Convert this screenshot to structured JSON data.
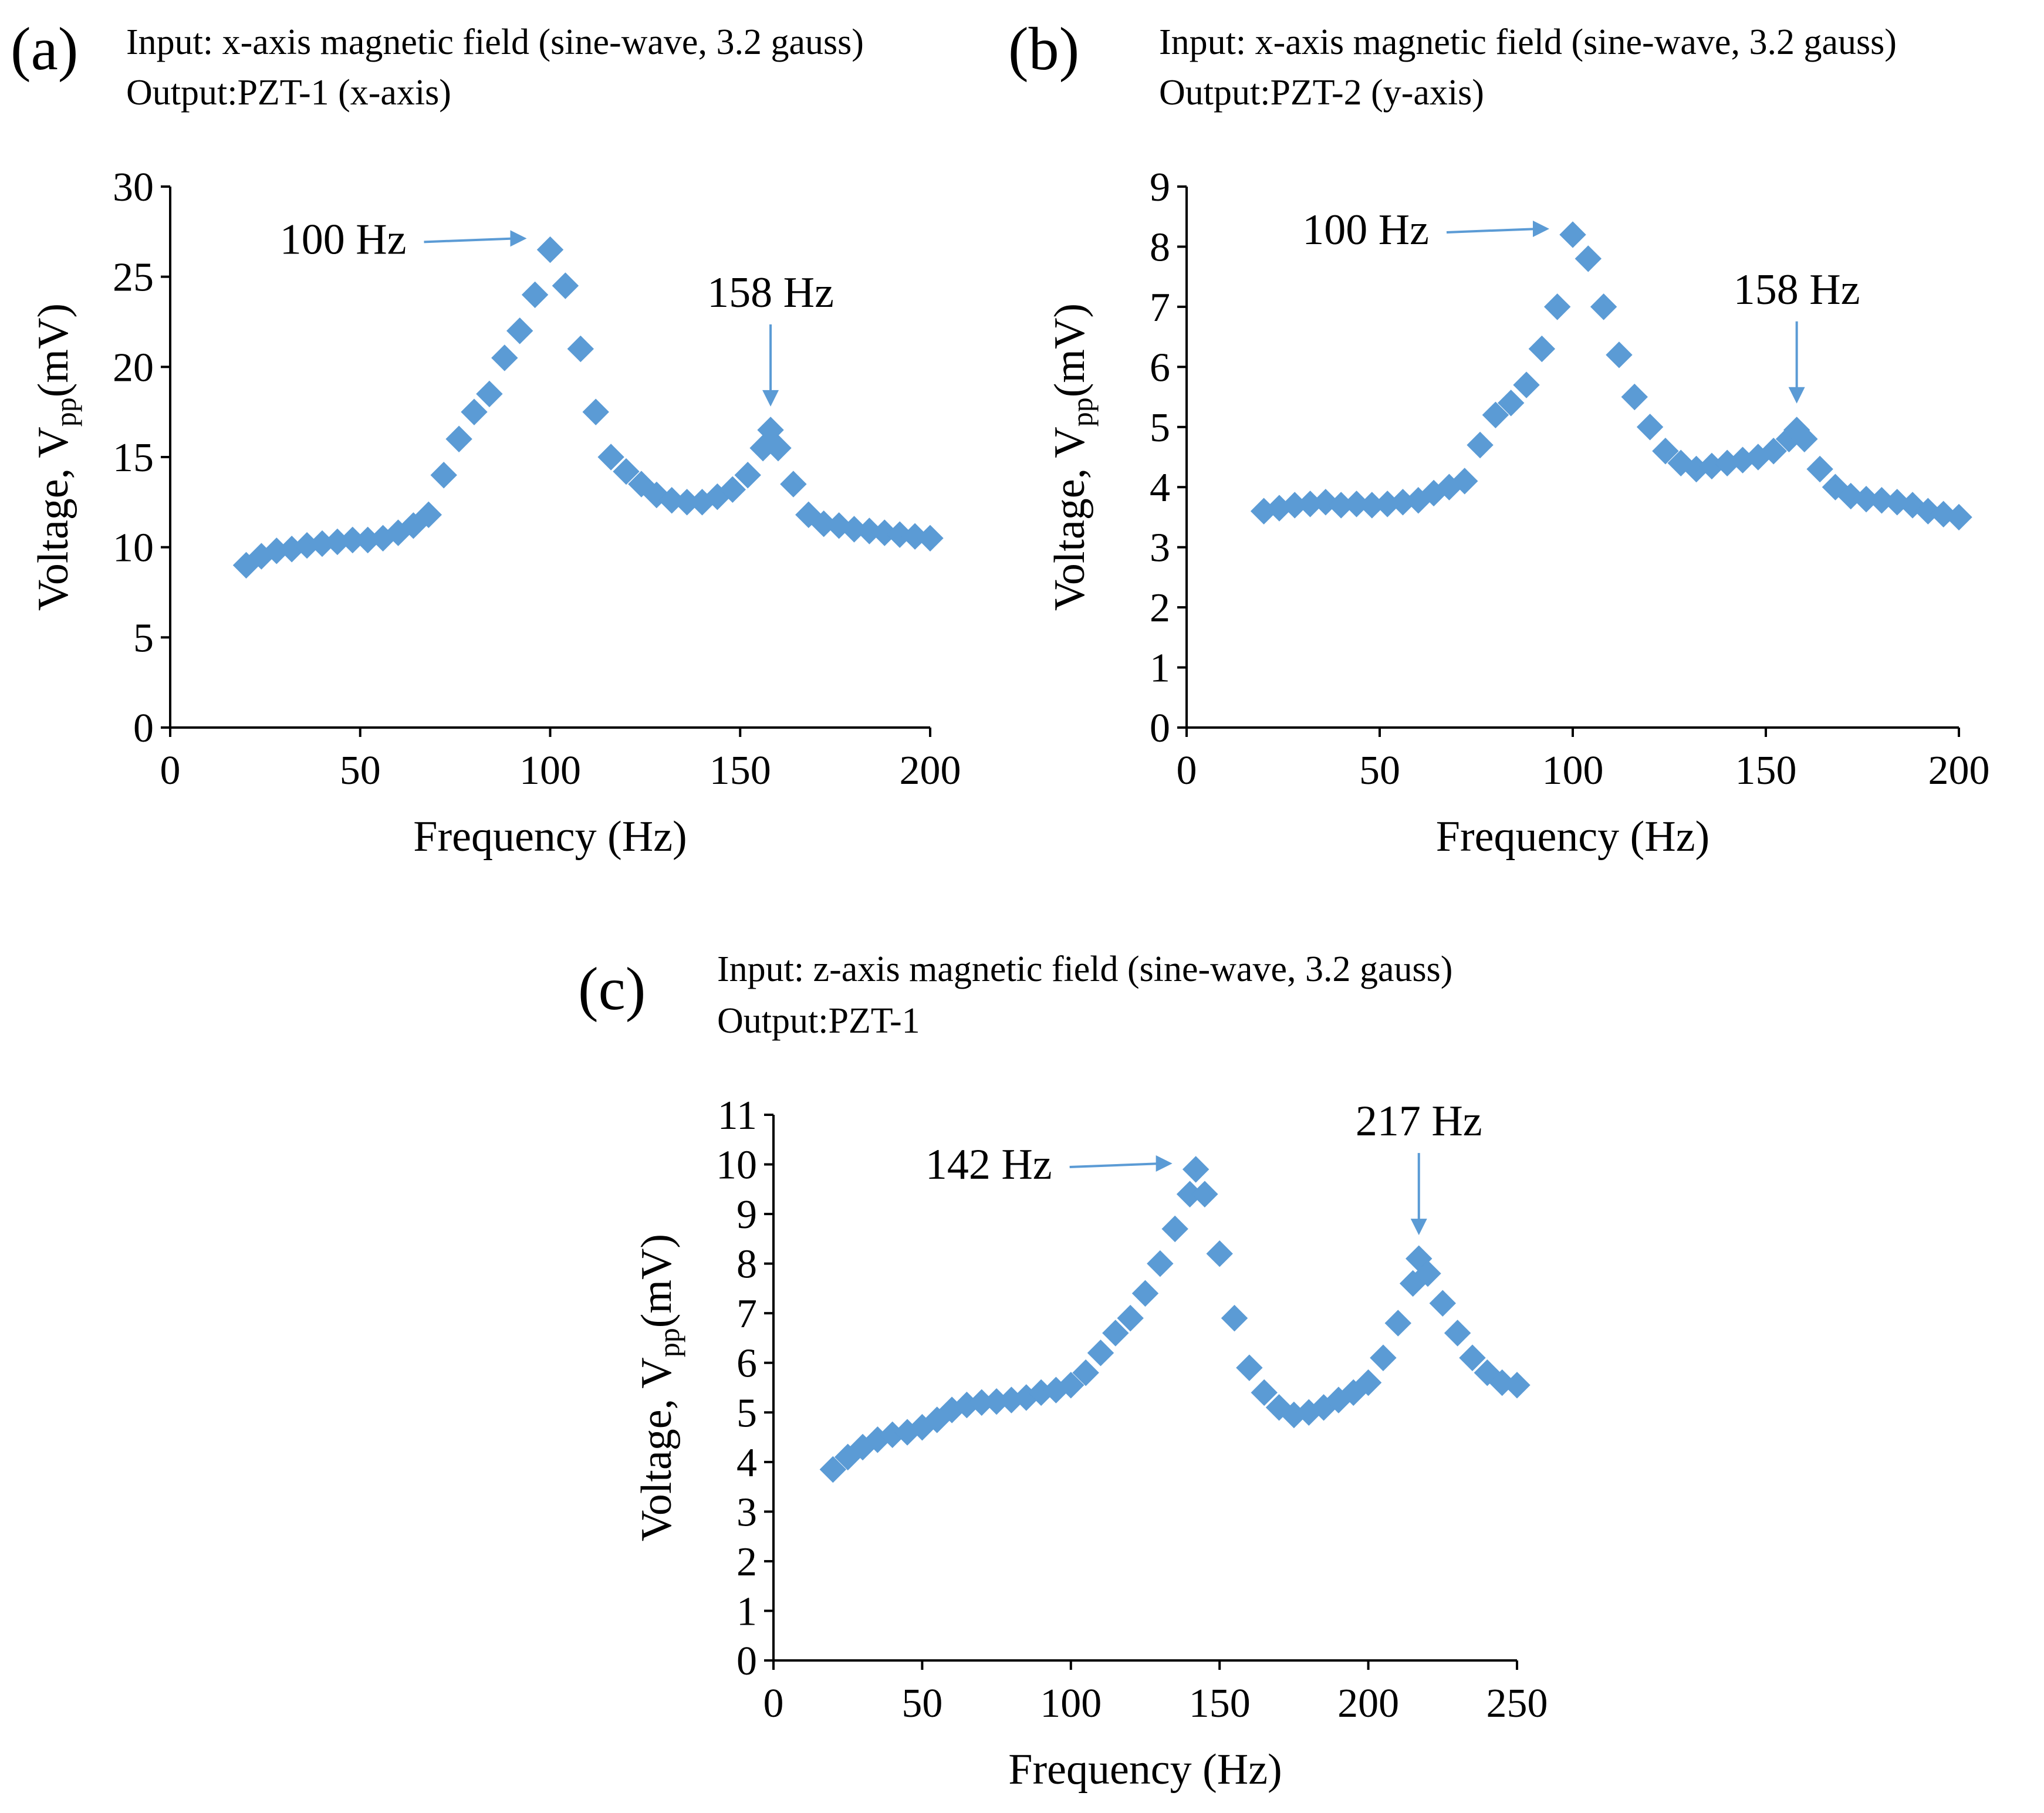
{
  "colors": {
    "marker": "#5b9bd5",
    "arrow": "#5b9bd5",
    "axis": "#000000"
  },
  "chart_data": [
    {
      "panel": "(a)",
      "caption_line1": "Input: x-axis magnetic field (sine-wave, 3.2 gauss)",
      "caption_line2": "Output:PZT-1 (x-axis)",
      "type": "scatter",
      "xlabel": "Frequency (Hz)",
      "ylabel_main": "Voltage, V",
      "ylabel_sub": "pp",
      "ylabel_unit": "(mV)",
      "xlim": [
        0,
        200
      ],
      "ylim": [
        0,
        30
      ],
      "xticks": [
        0,
        50,
        100,
        150,
        200
      ],
      "yticks": [
        0,
        5,
        10,
        15,
        20,
        25,
        30
      ],
      "marker": "diamond",
      "annotations": [
        {
          "text": "100 Hz",
          "x": 100,
          "y": 26.8,
          "arrow": "right"
        },
        {
          "text": "158 Hz",
          "x": 158,
          "y": 16.5,
          "arrow": "down"
        }
      ],
      "series": [
        {
          "x": [
            20,
            24,
            28,
            32,
            36,
            40,
            44,
            48,
            52,
            56,
            60,
            64,
            68,
            72,
            76,
            80,
            84,
            88,
            92,
            96,
            100,
            104,
            108,
            112,
            116,
            120,
            124,
            128,
            132,
            136,
            140,
            144,
            148,
            152,
            156,
            158,
            160,
            164,
            168,
            172,
            176,
            180,
            184,
            188,
            192,
            196,
            200
          ],
          "y": [
            9.0,
            9.5,
            9.8,
            9.9,
            10.1,
            10.2,
            10.3,
            10.4,
            10.4,
            10.5,
            10.8,
            11.2,
            11.8,
            14.0,
            16.0,
            17.5,
            18.5,
            20.5,
            22.0,
            24.0,
            26.5,
            24.5,
            21.0,
            17.5,
            15.0,
            14.2,
            13.5,
            12.9,
            12.6,
            12.5,
            12.5,
            12.8,
            13.2,
            14.0,
            15.5,
            16.5,
            15.5,
            13.5,
            11.8,
            11.3,
            11.2,
            11.0,
            10.9,
            10.8,
            10.7,
            10.6,
            10.5
          ]
        }
      ]
    },
    {
      "panel": "(b)",
      "caption_line1": "Input: x-axis magnetic field (sine-wave, 3.2 gauss)",
      "caption_line2": "Output:PZT-2 (y-axis)",
      "type": "scatter",
      "xlabel": "Frequency (Hz)",
      "ylabel_main": "Voltage, V",
      "ylabel_sub": "pp",
      "ylabel_unit": "(mV)",
      "xlim": [
        0,
        200
      ],
      "ylim": [
        0,
        9
      ],
      "xticks": [
        0,
        50,
        100,
        150,
        200
      ],
      "yticks": [
        0,
        1,
        2,
        3,
        4,
        5,
        6,
        7,
        8,
        9
      ],
      "marker": "diamond",
      "annotations": [
        {
          "text": "100 Hz",
          "x": 100,
          "y": 8.2,
          "arrow": "right"
        },
        {
          "text": "158 Hz",
          "x": 158,
          "y": 5.0,
          "arrow": "down"
        }
      ],
      "series": [
        {
          "x": [
            20,
            24,
            28,
            32,
            36,
            40,
            44,
            48,
            52,
            56,
            60,
            64,
            68,
            72,
            76,
            80,
            84,
            88,
            92,
            96,
            100,
            104,
            108,
            112,
            116,
            120,
            124,
            128,
            132,
            136,
            140,
            144,
            148,
            152,
            156,
            158,
            160,
            164,
            168,
            172,
            176,
            180,
            184,
            188,
            192,
            196,
            200
          ],
          "y": [
            3.6,
            3.65,
            3.7,
            3.72,
            3.75,
            3.7,
            3.72,
            3.7,
            3.72,
            3.75,
            3.78,
            3.9,
            4.0,
            4.1,
            4.7,
            5.2,
            5.4,
            5.7,
            6.3,
            7.0,
            8.2,
            7.8,
            7.0,
            6.2,
            5.5,
            5.0,
            4.6,
            4.4,
            4.3,
            4.35,
            4.4,
            4.45,
            4.5,
            4.6,
            4.8,
            4.95,
            4.8,
            4.3,
            4.0,
            3.85,
            3.8,
            3.78,
            3.75,
            3.7,
            3.6,
            3.55,
            3.5
          ]
        }
      ]
    },
    {
      "panel": "(c)",
      "caption_line1": "Input: z-axis magnetic field (sine-wave, 3.2 gauss)",
      "caption_line2": "Output:PZT-1",
      "type": "scatter",
      "xlabel": "Frequency (Hz)",
      "ylabel_main": "Voltage, V",
      "ylabel_sub": "pp",
      "ylabel_unit": "(mV)",
      "xlim": [
        0,
        250
      ],
      "ylim": [
        0,
        11
      ],
      "xticks": [
        0,
        50,
        100,
        150,
        200,
        250
      ],
      "yticks": [
        0,
        1,
        2,
        3,
        4,
        5,
        6,
        7,
        8,
        9,
        10,
        11
      ],
      "marker": "diamond",
      "annotations": [
        {
          "text": "142 Hz",
          "x": 142,
          "y": 9.9,
          "arrow": "right"
        },
        {
          "text": "217 Hz",
          "x": 217,
          "y": 8.1,
          "arrow": "down"
        }
      ],
      "series": [
        {
          "x": [
            20,
            25,
            30,
            35,
            40,
            45,
            50,
            55,
            60,
            65,
            70,
            75,
            80,
            85,
            90,
            95,
            100,
            105,
            110,
            115,
            120,
            125,
            130,
            135,
            140,
            142,
            145,
            150,
            155,
            160,
            165,
            170,
            175,
            180,
            185,
            190,
            195,
            200,
            205,
            210,
            215,
            217,
            220,
            225,
            230,
            235,
            240,
            245,
            250
          ],
          "y": [
            3.85,
            4.1,
            4.3,
            4.45,
            4.55,
            4.6,
            4.7,
            4.85,
            5.05,
            5.15,
            5.2,
            5.22,
            5.25,
            5.3,
            5.4,
            5.45,
            5.55,
            5.8,
            6.2,
            6.6,
            6.9,
            7.4,
            8.0,
            8.7,
            9.4,
            9.9,
            9.4,
            8.2,
            6.9,
            5.9,
            5.4,
            5.1,
            4.95,
            5.0,
            5.1,
            5.25,
            5.4,
            5.6,
            6.1,
            6.8,
            7.6,
            8.1,
            7.8,
            7.2,
            6.6,
            6.1,
            5.8,
            5.6,
            5.55
          ]
        }
      ]
    }
  ]
}
